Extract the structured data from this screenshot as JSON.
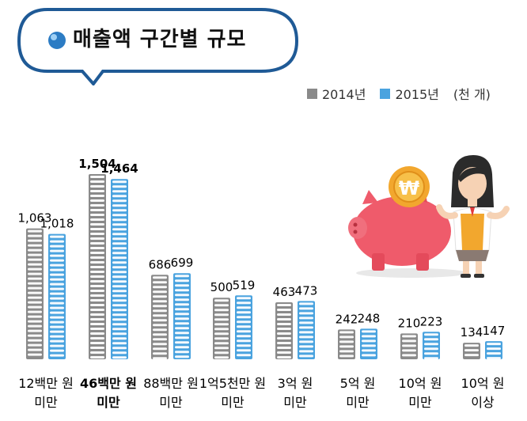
{
  "title": "매출액 구간별 규모",
  "legend": {
    "series_2014": "2014년",
    "series_2015": "2015년",
    "unit": "(천 개)"
  },
  "colors": {
    "series_2014": "#8a8a8a",
    "series_2015": "#4aa3df",
    "accent_title_border": "#1f5a96",
    "piggy": "#ef5b6b",
    "coin": "#f2a72e"
  },
  "chart_data": {
    "type": "bar",
    "title": "매출액 구간별 규모",
    "unit": "(천 개)",
    "categories": [
      [
        "12백만 원",
        "미만"
      ],
      [
        "46백만 원",
        "미만"
      ],
      [
        "88백만 원",
        "미만"
      ],
      [
        "1억5천만 원",
        "미만"
      ],
      [
        "3억 원",
        "미만"
      ],
      [
        "5억 원",
        "미만"
      ],
      [
        "10억 원",
        "미만"
      ],
      [
        "10억 원",
        "이상"
      ]
    ],
    "highlight_category_index": 1,
    "series": [
      {
        "name": "2014년",
        "values": [
          1063,
          1504,
          686,
          500,
          463,
          242,
          210,
          134
        ],
        "labels": [
          "1,063",
          "1,504",
          "686",
          "500",
          "463",
          "242",
          "210",
          "134"
        ]
      },
      {
        "name": "2015년",
        "values": [
          1018,
          1464,
          699,
          519,
          473,
          248,
          223,
          147
        ],
        "labels": [
          "1,018",
          "1,464",
          "699",
          "519",
          "473",
          "248",
          "223",
          "147"
        ]
      }
    ],
    "ylim": [
      0,
      1600
    ],
    "grid": false,
    "legend_position": "top-right"
  },
  "illustration": {
    "coin_symbol": "₩",
    "icons": [
      "piggy-bank-icon",
      "coin-icon",
      "woman-figure-icon"
    ]
  }
}
